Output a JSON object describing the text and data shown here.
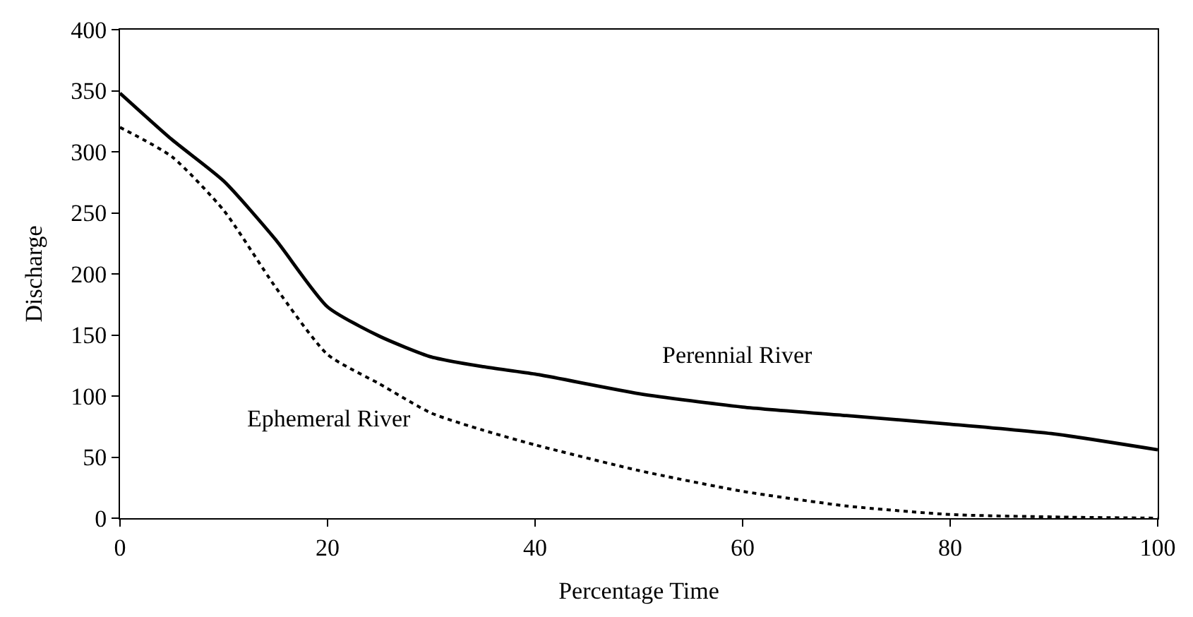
{
  "chart_data": {
    "type": "line",
    "xlabel": "Percentage Time",
    "ylabel": "Discharge",
    "x": [
      0,
      5,
      10,
      15,
      20,
      25,
      30,
      35,
      40,
      50,
      60,
      70,
      80,
      90,
      100
    ],
    "series": [
      {
        "name": "Perennial River",
        "color": "#000000",
        "line_style": "solid",
        "values": [
          348,
          310,
          276,
          228,
          173,
          149,
          132,
          124,
          118,
          102,
          91,
          84,
          77,
          69,
          56
        ]
      },
      {
        "name": "Ephemeral River",
        "color": "#000000",
        "line_style": "dotted",
        "values": [
          320,
          296,
          252,
          189,
          134,
          110,
          86,
          72,
          60,
          39,
          22,
          10,
          3,
          1,
          0
        ]
      }
    ],
    "xlim": [
      0,
      100
    ],
    "xticks": [
      0,
      20,
      40,
      60,
      80,
      100
    ],
    "ylim": [
      0,
      400
    ],
    "yticks": [
      0,
      50,
      100,
      150,
      200,
      250,
      300,
      350,
      400
    ],
    "legend": false,
    "marker": "none"
  }
}
